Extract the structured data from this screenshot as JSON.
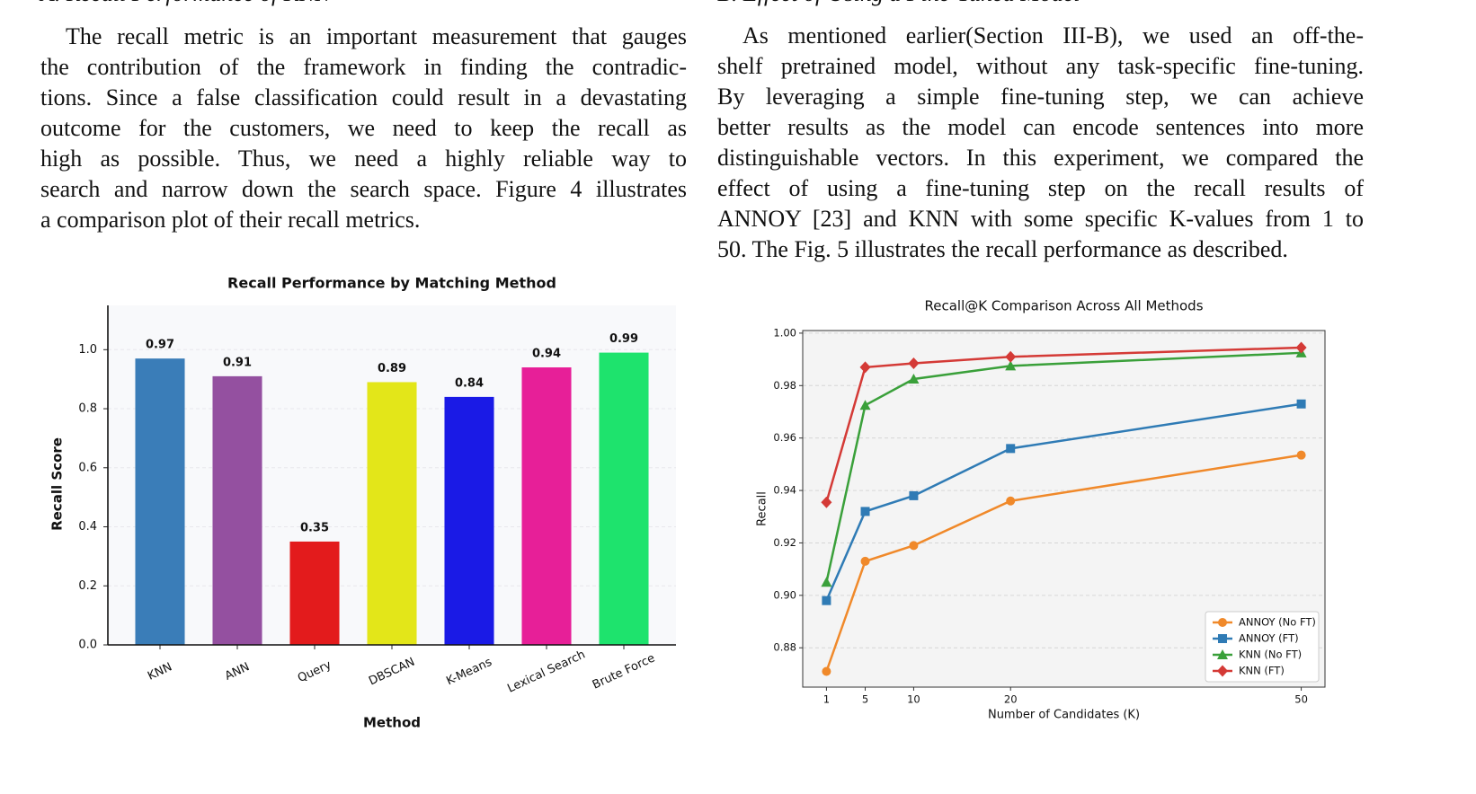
{
  "sections": [
    {
      "heading": "A. Recall Performance of KNN",
      "lines": [
        "The recall metric is an important measurement that gauges",
        "the contribution of the framework in finding the contradic-",
        "tions. Since a false classification could result in a devastating",
        "outcome for the customers, we need to keep the recall as",
        "high as possible. Thus, we need a highly reliable way to",
        "search and narrow down the search space. Figure 4 illustrates",
        "a comparison plot of their recall metrics."
      ]
    },
    {
      "heading": "B. Effect of Using a Fine-Tuned Model",
      "lines": [
        "As mentioned earlier(Section III-B), we used an off-the-",
        "shelf pretrained model, without any task-specific fine-tuning.",
        "By leveraging a simple fine-tuning step, we can achieve",
        "better results as the model can encode sentences into more",
        "distinguishable vectors. In this experiment, we compared the",
        "effect of using a fine-tuning step on the recall results of",
        "ANNOY [23] and KNN with some specific K-values from 1 to",
        "50. The Fig. 5 illustrates the recall performance as described."
      ]
    }
  ],
  "chart_data": [
    {
      "type": "bar",
      "title": "Recall Performance by Matching Method",
      "xlabel": "Method",
      "ylabel": "Recall Score",
      "categories": [
        "KNN",
        "ANN",
        "Query",
        "DBSCAN",
        "K-Means",
        "Lexical Search",
        "Brute Force"
      ],
      "values": [
        0.97,
        0.91,
        0.35,
        0.89,
        0.84,
        0.94,
        0.99
      ],
      "colors": [
        "#3a7db8",
        "#9450a0",
        "#e31b1c",
        "#e3e619",
        "#1a1ae6",
        "#e71f98",
        "#1ee36d"
      ],
      "ylim": [
        0,
        1.15
      ],
      "yticks": [
        {
          "value": 0,
          "label": "0.0"
        },
        0.2,
        0.4,
        0.6,
        0.8,
        {
          "value": 1,
          "label": "1.0"
        }
      ],
      "grid": true
    },
    {
      "type": "line",
      "title": "Recall@K Comparison Across All Methods",
      "xlabel": "Number of Candidates (K)",
      "ylabel": "Recall",
      "x": [
        1,
        5,
        10,
        20,
        50
      ],
      "xlim": [
        -1.45,
        52.45
      ],
      "xticks": [
        1,
        5,
        10,
        20,
        50
      ],
      "ylim": [
        0.865,
        1.001
      ],
      "yticks": [
        0.88,
        {
          "value": 0.9,
          "label": "0.90"
        },
        0.92,
        0.94,
        0.96,
        0.98,
        {
          "value": 1,
          "label": "1.00"
        }
      ],
      "grid": true,
      "legend": "lower right",
      "series": [
        {
          "name": "ANNOY (No FT)",
          "color": "#f0892a",
          "marker": "circle",
          "values": [
            0.871,
            0.913,
            0.919,
            0.936,
            0.9535
          ]
        },
        {
          "name": "ANNOY (FT)",
          "color": "#2f7bb5",
          "marker": "square",
          "values": [
            0.898,
            0.932,
            0.938,
            0.956,
            0.973
          ]
        },
        {
          "name": "KNN (No FT)",
          "color": "#3aa03a",
          "marker": "triangle",
          "values": [
            0.905,
            0.9725,
            0.9825,
            0.9875,
            0.9925
          ]
        },
        {
          "name": "KNN (FT)",
          "color": "#d43a36",
          "marker": "diamond",
          "values": [
            0.9355,
            0.987,
            0.9885,
            0.991,
            0.9945
          ]
        }
      ]
    }
  ]
}
